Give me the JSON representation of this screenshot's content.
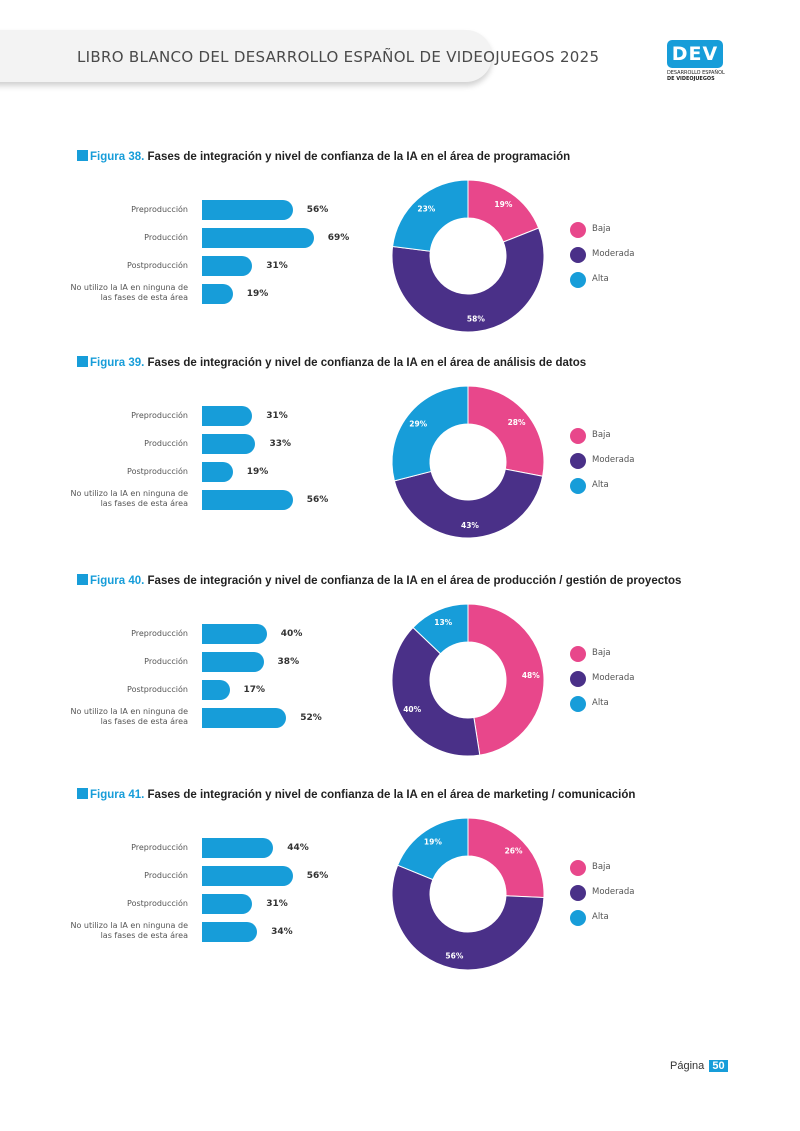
{
  "header": {
    "title": "LIBRO BLANCO DEL DESARROLLO ESPAÑOL DE VIDEOJUEGOS 2025",
    "logo_mark": "DEV",
    "logo_line1": "DESARROLLO ESPAÑOL",
    "logo_line2": "DE VIDEOJUEGOS"
  },
  "colors": {
    "baja": "#e8478b",
    "moderada": "#4a3088",
    "alta": "#179dd9",
    "bar": "#179dd9"
  },
  "bar_labels": [
    "Preproducción",
    "Producción",
    "Postproducción",
    "No utilizo la IA en ninguna de las fases de esta área"
  ],
  "legend": [
    "Baja",
    "Moderada",
    "Alta"
  ],
  "figures": [
    {
      "number": "Figura 38.",
      "title": "Fases de integración y nivel de confianza de la IA en el área de programación",
      "bars": [
        56,
        69,
        31,
        19
      ],
      "bar_labels_text": [
        "56%",
        "69%",
        "31%",
        "19%"
      ],
      "donut": {
        "baja": 19,
        "moderada": 58,
        "alta": 23
      },
      "donut_labels": [
        "19%",
        "58%",
        "23%"
      ]
    },
    {
      "number": "Figura 39.",
      "title": "Fases de integración y nivel de confianza de la IA en el área de análisis de datos",
      "bars": [
        31,
        33,
        19,
        56
      ],
      "bar_labels_text": [
        "31%",
        "33%",
        "19%",
        "56%"
      ],
      "donut": {
        "baja": 28,
        "moderada": 43,
        "alta": 29
      },
      "donut_labels": [
        "28%",
        "43%",
        "29%"
      ]
    },
    {
      "number": "Figura 40.",
      "title": "Fases de integración y nivel de confianza de la IA en el área de producción / gestión de proyectos",
      "bars": [
        40,
        38,
        17,
        52
      ],
      "bar_labels_text": [
        "40%",
        "38%",
        "17%",
        "52%"
      ],
      "donut": {
        "baja": 48,
        "moderada": 40,
        "alta": 13
      },
      "donut_labels": [
        "48%",
        "40%",
        "13%"
      ]
    },
    {
      "number": "Figura 41.",
      "title": "Fases de integración y nivel de confianza de la IA en el área de marketing / comunicación",
      "bars": [
        44,
        56,
        31,
        34
      ],
      "bar_labels_text": [
        "44%",
        "56%",
        "31%",
        "34%"
      ],
      "donut": {
        "baja": 26,
        "moderada": 56,
        "alta": 19
      },
      "donut_labels": [
        "26%",
        "56%",
        "19%"
      ]
    }
  ],
  "chart_data": [
    {
      "type": "bar",
      "categories": [
        "Preproducción",
        "Producción",
        "Postproducción",
        "No utilizo la IA en ninguna de las fases de esta área"
      ],
      "values": [
        56,
        69,
        31,
        19
      ]
    },
    {
      "type": "pie",
      "categories": [
        "Baja",
        "Moderada",
        "Alta"
      ],
      "values": [
        19,
        58,
        23
      ]
    },
    {
      "type": "bar",
      "categories": [
        "Preproducción",
        "Producción",
        "Postproducción",
        "No utilizo la IA en ninguna de las fases de esta área"
      ],
      "values": [
        31,
        33,
        19,
        56
      ]
    },
    {
      "type": "pie",
      "categories": [
        "Baja",
        "Moderada",
        "Alta"
      ],
      "values": [
        28,
        43,
        29
      ]
    },
    {
      "type": "bar",
      "categories": [
        "Preproducción",
        "Producción",
        "Postproducción",
        "No utilizo la IA en ninguna de las fases de esta área"
      ],
      "values": [
        40,
        38,
        17,
        52
      ]
    },
    {
      "type": "pie",
      "categories": [
        "Baja",
        "Moderada",
        "Alta"
      ],
      "values": [
        48,
        40,
        13
      ]
    },
    {
      "type": "bar",
      "categories": [
        "Preproducción",
        "Producción",
        "Postproducción",
        "No utilizo la IA en ninguna de las fases de esta área"
      ],
      "values": [
        44,
        56,
        31,
        34
      ]
    },
    {
      "type": "pie",
      "categories": [
        "Baja",
        "Moderada",
        "Alta"
      ],
      "values": [
        26,
        56,
        19
      ]
    }
  ],
  "footer": {
    "page_label": "Página",
    "page_number": "50"
  }
}
